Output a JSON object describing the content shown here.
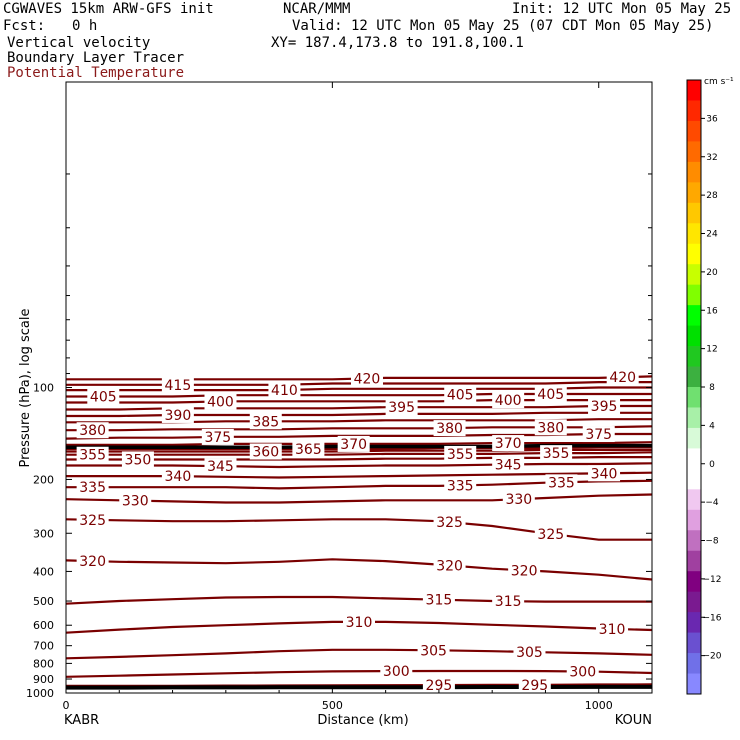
{
  "header": {
    "model": "CGWAVES 15km ARW-GFS init",
    "org": "NCAR/MMM",
    "init": "Init: 12 UTC Mon 05 May 25",
    "fcst_label": "Fcst:",
    "fcst_value": "0 h",
    "valid": "Valid: 12 UTC Mon 05 May 25 (07 CDT Mon 05 May 25)",
    "field1": "Vertical velocity",
    "xy": "XY= 187.4,173.8 to 191.8,100.1",
    "field2": "Boundary Layer Tracer",
    "field3": "Potential Temperature"
  },
  "colors": {
    "contour": "#7a0000",
    "field3_text": "#8b1a1a",
    "tropopause": "#000000"
  },
  "chart_data": {
    "type": "contour cross-section",
    "xlabel": "Distance (km)",
    "ylabel": "Pressure (hPa), log scale",
    "x_range": [
      0,
      1100
    ],
    "y_scale": "log",
    "y_range_hPa": [
      1000,
      10
    ],
    "x_ticks": [
      0,
      500,
      1000
    ],
    "y_ticks": [
      100,
      200,
      300,
      400,
      500,
      600,
      700,
      800,
      900,
      1000
    ],
    "left_endpoint": "KABR",
    "right_endpoint": "KOUN",
    "colorbar_unit": "cm s⁻¹",
    "colorbar_ticks": [
      36,
      32,
      28,
      24,
      20,
      16,
      12,
      8,
      4,
      0,
      -4,
      -8,
      -12,
      -16,
      -20
    ],
    "colorbar_colors": [
      "#ff0000",
      "#ff2800",
      "#ff4a00",
      "#ff6a00",
      "#ff8c00",
      "#ffa800",
      "#ffc800",
      "#ffe600",
      "#ffff00",
      "#c8ff00",
      "#80ff00",
      "#00ff00",
      "#00e000",
      "#20c820",
      "#3cb040",
      "#70e070",
      "#a8f0a8",
      "#d8fad8",
      "#ffffff",
      "#ffffff",
      "#f0c8f0",
      "#e0a0e0",
      "#c070c0",
      "#a040a0",
      "#800080",
      "#7a1a90",
      "#6a28b0",
      "#6a50d0",
      "#7070e8",
      "#8888ff"
    ],
    "isentropes": [
      {
        "theta": 295,
        "p": [
          948,
          948,
          948,
          946,
          945,
          944,
          943,
          942,
          941,
          940,
          938,
          937
        ]
      },
      {
        "theta": 300,
        "p": [
          885,
          878,
          870,
          862,
          855,
          850,
          848,
          847,
          847,
          848,
          852,
          860
        ]
      },
      {
        "theta": 305,
        "p": [
          770,
          762,
          752,
          742,
          730,
          722,
          722,
          725,
          730,
          736,
          742,
          750
        ]
      },
      {
        "theta": 310,
        "p": [
          635,
          620,
          608,
          600,
          592,
          585,
          585,
          590,
          598,
          606,
          615,
          622
        ]
      },
      {
        "theta": 315,
        "p": [
          510,
          500,
          493,
          487,
          485,
          485,
          490,
          495,
          500,
          502,
          502,
          502
        ]
      },
      {
        "theta": 320,
        "p": [
          368,
          372,
          374,
          376,
          372,
          365,
          370,
          380,
          392,
          400,
          410,
          425
        ]
      },
      {
        "theta": 325,
        "p": [
          270,
          272,
          274,
          274,
          272,
          270,
          270,
          274,
          284,
          300,
          315,
          315
        ]
      },
      {
        "theta": 330,
        "p": [
          232,
          234,
          236,
          238,
          238,
          236,
          234,
          234,
          234,
          230,
          226,
          224
        ]
      },
      {
        "theta": 335,
        "p": [
          212,
          212,
          212,
          212,
          214,
          212,
          210,
          210,
          208,
          205,
          203,
          202
        ]
      },
      {
        "theta": 340,
        "p": [
          195,
          195,
          195,
          196,
          197,
          196,
          195,
          194,
          193,
          192,
          191,
          190
        ]
      },
      {
        "theta": 345,
        "p": [
          180,
          180,
          180,
          181,
          182,
          181,
          180,
          180,
          179,
          178,
          178,
          177
        ]
      },
      {
        "theta": 350,
        "p": [
          172,
          172,
          172,
          172,
          172,
          172,
          171,
          171,
          170,
          170,
          169,
          169
        ]
      },
      {
        "theta": 355,
        "p": [
          166,
          166,
          166,
          166,
          166,
          166,
          165,
          165,
          165,
          164,
          164,
          163
        ]
      },
      {
        "theta": 360,
        "p": [
          162,
          162,
          162,
          162,
          162,
          162,
          161,
          161,
          161,
          160,
          160,
          160
        ]
      },
      {
        "theta": 365,
        "p": [
          159,
          159,
          159,
          159,
          159,
          159,
          159,
          158,
          158,
          158,
          157,
          157
        ]
      },
      {
        "theta": 370,
        "p": [
          154,
          154,
          154,
          153,
          153,
          153,
          153,
          153,
          152,
          152,
          152,
          151
        ]
      },
      {
        "theta": 375,
        "p": [
          147,
          146,
          146,
          145,
          145,
          144,
          144,
          144,
          143,
          143,
          142,
          142
        ]
      },
      {
        "theta": 380,
        "p": [
          138,
          138,
          137,
          137,
          137,
          136,
          136,
          136,
          135,
          135,
          135,
          134
        ]
      },
      {
        "theta": 385,
        "p": [
          130,
          130,
          130,
          129,
          129,
          129,
          128,
          128,
          128,
          128,
          127,
          127
        ]
      },
      {
        "theta": 390,
        "p": [
          124,
          124,
          123,
          123,
          123,
          123,
          122,
          122,
          122,
          121,
          121,
          121
        ]
      },
      {
        "theta": 395,
        "p": [
          118,
          118,
          117,
          117,
          117,
          117,
          116,
          116,
          116,
          116,
          115,
          115
        ]
      },
      {
        "theta": 400,
        "p": [
          112,
          112,
          112,
          111,
          111,
          111,
          111,
          111,
          110,
          110,
          110,
          110
        ]
      },
      {
        "theta": 405,
        "p": [
          107,
          107,
          107,
          106,
          106,
          106,
          106,
          106,
          105,
          105,
          105,
          105
        ]
      },
      {
        "theta": 410,
        "p": [
          102,
          102,
          102,
          102,
          102,
          101,
          101,
          101,
          101,
          101,
          100,
          100
        ]
      },
      {
        "theta": 415,
        "p": [
          98,
          98,
          98,
          98,
          98,
          97,
          97,
          97,
          97,
          97,
          96,
          96
        ]
      },
      {
        "theta": 420,
        "p": [
          94,
          94,
          94,
          94,
          94,
          94,
          93,
          93,
          93,
          93,
          93,
          92
        ]
      }
    ],
    "tropopause_p": [
      157,
      157,
      157,
      157,
      157,
      156,
      156,
      156,
      156,
      155,
      155,
      155
    ],
    "surface_p": [
      960,
      960,
      959,
      959,
      958,
      958,
      957,
      957,
      956,
      956,
      955,
      955
    ],
    "labels": [
      {
        "theta": 420,
        "x": 565
      },
      {
        "theta": 420,
        "x": 1045
      },
      {
        "theta": 415,
        "x": 210
      },
      {
        "theta": 410,
        "x": 410
      },
      {
        "theta": 405,
        "x": 70
      },
      {
        "theta": 405,
        "x": 740
      },
      {
        "theta": 405,
        "x": 910
      },
      {
        "theta": 400,
        "x": 290
      },
      {
        "theta": 400,
        "x": 830
      },
      {
        "theta": 395,
        "x": 630
      },
      {
        "theta": 395,
        "x": 1010
      },
      {
        "theta": 390,
        "x": 210
      },
      {
        "theta": 385,
        "x": 375
      },
      {
        "theta": 380,
        "x": 50
      },
      {
        "theta": 380,
        "x": 720
      },
      {
        "theta": 380,
        "x": 910
      },
      {
        "theta": 375,
        "x": 285
      },
      {
        "theta": 375,
        "x": 1000
      },
      {
        "theta": 370,
        "x": 540
      },
      {
        "theta": 370,
        "x": 830
      },
      {
        "theta": 365,
        "x": 455
      },
      {
        "theta": 360,
        "x": 375
      },
      {
        "theta": 355,
        "x": 50
      },
      {
        "theta": 355,
        "x": 740
      },
      {
        "theta": 355,
        "x": 920
      },
      {
        "theta": 350,
        "x": 135
      },
      {
        "theta": 345,
        "x": 290
      },
      {
        "theta": 345,
        "x": 830
      },
      {
        "theta": 340,
        "x": 210
      },
      {
        "theta": 340,
        "x": 1010
      },
      {
        "theta": 335,
        "x": 50
      },
      {
        "theta": 335,
        "x": 740
      },
      {
        "theta": 335,
        "x": 930
      },
      {
        "theta": 330,
        "x": 130
      },
      {
        "theta": 330,
        "x": 850
      },
      {
        "theta": 325,
        "x": 50
      },
      {
        "theta": 325,
        "x": 720
      },
      {
        "theta": 325,
        "x": 910
      },
      {
        "theta": 320,
        "x": 50
      },
      {
        "theta": 320,
        "x": 720
      },
      {
        "theta": 320,
        "x": 860
      },
      {
        "theta": 315,
        "x": 700
      },
      {
        "theta": 315,
        "x": 830
      },
      {
        "theta": 310,
        "x": 550
      },
      {
        "theta": 310,
        "x": 1025
      },
      {
        "theta": 305,
        "x": 690
      },
      {
        "theta": 305,
        "x": 870
      },
      {
        "theta": 300,
        "x": 620
      },
      {
        "theta": 300,
        "x": 970
      },
      {
        "theta": 295,
        "x": 700
      },
      {
        "theta": 295,
        "x": 880
      }
    ]
  }
}
